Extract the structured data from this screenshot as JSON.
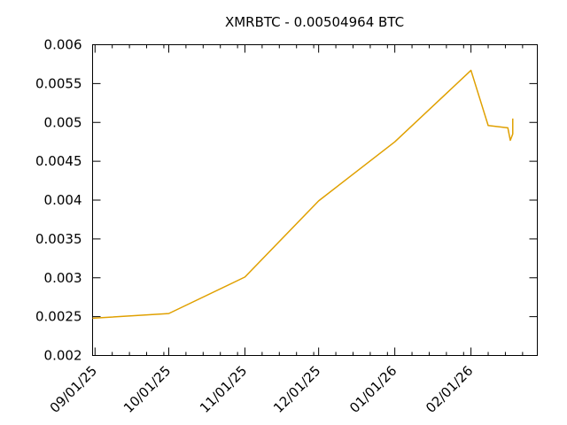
{
  "chart_data": {
    "type": "line",
    "title": "XMRBTC - 0.00504964 BTC",
    "xlabel": "",
    "ylabel": "",
    "x_axis": {
      "type": "date",
      "range": [
        "2025-08-31",
        "2026-02-28"
      ],
      "major_ticks": [
        "2025-09-01",
        "2025-10-01",
        "2025-11-01",
        "2025-12-01",
        "2026-01-01",
        "2026-02-01"
      ],
      "major_labels": [
        "09/01/25",
        "10/01/25",
        "11/01/25",
        "12/01/25",
        "01/01/26",
        "02/01/26"
      ]
    },
    "y_axis": {
      "range": [
        0.002,
        0.006
      ],
      "ticks": [
        0.002,
        0.0025,
        0.003,
        0.0035,
        0.004,
        0.0045,
        0.005,
        0.0055,
        0.006
      ],
      "tick_labels": [
        "0.002",
        "0.0025",
        "0.003",
        "0.0035",
        "0.004",
        "0.0045",
        "0.005",
        "0.0055",
        "0.006"
      ]
    },
    "grid": false,
    "series": [
      {
        "color": "#e0a000",
        "points": [
          {
            "x": "2025-08-31",
            "y": 0.00248
          },
          {
            "x": "2025-10-01",
            "y": 0.00254
          },
          {
            "x": "2025-11-01",
            "y": 0.00301
          },
          {
            "x": "2025-12-01",
            "y": 0.00399
          },
          {
            "x": "2026-01-01",
            "y": 0.00475
          },
          {
            "x": "2026-02-01",
            "y": 0.00567
          },
          {
            "x": "2026-02-08",
            "y": 0.00496
          },
          {
            "x": "2026-02-16",
            "y": 0.00493
          },
          {
            "x": "2026-02-17",
            "y": 0.00477
          },
          {
            "x": "2026-02-18",
            "y": 0.00485
          },
          {
            "x": "2026-02-18",
            "y": 0.00505
          }
        ]
      }
    ]
  }
}
